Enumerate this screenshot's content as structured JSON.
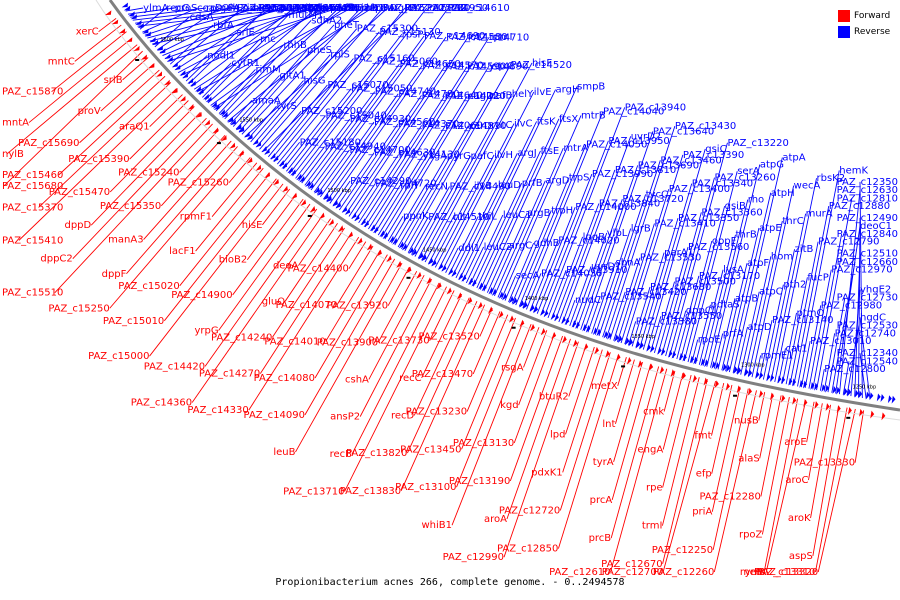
{
  "caption": "Propionibacterium acnes 266, complete genome. - 0..2494578",
  "legend": [
    {
      "label": "Forward",
      "color": "#ff0000"
    },
    {
      "label": "Reverse",
      "color": "#0000ff"
    }
  ],
  "colors": {
    "forward": "#ff0000",
    "reverse": "#0000ff",
    "backbone": "#808080"
  },
  "ticks": [
    "1600 kbp",
    "1550 kbp",
    "1500 kbp",
    "1450 kbp",
    "1400 kbp",
    "1350 kbp",
    "1300 kbp",
    "1250 kbp"
  ],
  "reverse_labels": [
    "ylmA",
    "proS",
    "rpsO",
    "PAZ_c15500",
    "pnp",
    "PAZ_c15490",
    "recG",
    "coaD",
    "PAZ_c15670",
    "PAZ_c15380",
    "rpsB",
    "frr",
    "cdsA",
    "gdh",
    "dxr",
    "PAZ_c15850",
    "nusA",
    "infB",
    "rbfA",
    "rimP",
    "truB",
    "ribF",
    "poxB",
    "nodl1",
    "srlE",
    "PAZ_c15570",
    "PAZ_c15620",
    "proW",
    "rpmB1",
    "cytR1",
    "rnc",
    "mutM1",
    "ftsY",
    "ffh",
    "trmD",
    "rimM",
    "rhhB",
    "sdhA2",
    "sdhB2",
    "lepB",
    "amaA",
    "gltA1",
    "pheS",
    "pheT",
    "infC",
    "argR2",
    "tyrS",
    "hisG",
    "rplS",
    "PAZ_c15300",
    "PAZ_c15220",
    "PAZ_c15230",
    "PAZ_c15200",
    "PAZ_c15070",
    "PAZ_c15160",
    "PAZ_c15130",
    "PAZ_c15030",
    "PAZ_c15180",
    "PAZ_c15040",
    "PAZ_c15050",
    "PAZ_c15060",
    "rpsP",
    "PAZ_c14950",
    "PAZ_c14940",
    "PAZ_c14930",
    "PAZ_c14740",
    "PAZ_c14650",
    "PAZ_c14690",
    "PAZ_c14610",
    "PAZ_c14700",
    "PAZ_c14560",
    "PAZ_c14780",
    "PAZ_c14570",
    "PAZ_c14580",
    "PAZ_c14290",
    "PAZ_c14630",
    "PAZ_c14370",
    "PAZ_c14640",
    "PAZ_c14590",
    "PAZ_c14710",
    "PAZ_c14720",
    "PAZ_c14130",
    "PAZ_c14060",
    "PAZ_c14120",
    "PAZ_c14890",
    "rpmI",
    "rplT",
    "ysgA",
    "PAZ_c14810",
    "nagD1",
    "yqxC",
    "ppnK",
    "recN",
    "pyrG",
    "xerD",
    "pafB",
    "PAZ_c14520",
    "PAZ_c14510",
    "PAZ_c14490",
    "pafC",
    "ratC",
    "helY",
    "hisF",
    "hit",
    "ilvB",
    "ilvH",
    "ilvC",
    "ilvE",
    "ddl1",
    "thiL",
    "leuD",
    "argJ",
    "ftsK",
    "argH",
    "leuC2",
    "leuC1",
    "prfB",
    "ftsE",
    "ftsX",
    "smpB",
    "argC",
    "argB",
    "argD",
    "mtrA",
    "mtrB",
    "secA",
    "gdhB",
    "trpH",
    "trpS",
    "PAZ_c14050",
    "PAZ_c14040",
    "PAZ_c14030",
    "PAZ_c14020",
    "PAZ_c14000",
    "PAZ_c13990",
    "PAZ_c13950",
    "PAZ_c13940",
    "PAZ_c13910",
    "lpqB",
    "PAZ_c13840",
    "PAZ_c13810",
    "uvrD2",
    "nudC",
    "uvrD1",
    "vlbL",
    "PAZ_c13720",
    "PAZ_c13690",
    "PAZ_c13640",
    "PAZ_c13540",
    "sbnA",
    "lgrB",
    "tycC",
    "PAZ_c13460",
    "PAZ_c13430",
    "PAZ_c13420",
    "PAZ_c13530",
    "PAZ_c13410",
    "PAZ_c13400",
    "PAZ_c13390",
    "PAZ_c13380",
    "PAZ_c13680",
    "parA1",
    "PAZ_c13350",
    "PAZ_c13340",
    "gsiC",
    "PAZ_c13550",
    "PAZ_c13500",
    "PAZ_c13560",
    "PAZ_c13360",
    "PAZ_c13260",
    "PAZ_c13220",
    "dppC1",
    "PAZ_c13170",
    "oppF",
    "gsiB",
    "serA",
    "rpoE",
    "pdtaS",
    "lysA",
    "thrB",
    "rho",
    "atpG",
    "prfA",
    "atpB",
    "atpF",
    "atpE",
    "atpH",
    "atpA",
    "atpD",
    "atpC",
    "hom",
    "thrC",
    "wecA",
    "rpmE1",
    "PAZ_c13140",
    "pth2",
    "zitB",
    "murA",
    "rbsK2",
    "cat1",
    "ptmO",
    "fucP",
    "PAZ_c12790",
    "PAZ_c12880",
    "hemK",
    "PAZ_c13010",
    "PAZ_c12980",
    "PAZ_c12970",
    "PAZ_c12840",
    "PAZ_c12810",
    "PAZ_c12800",
    "PAZ_c12740",
    "PAZ_c12730",
    "PAZ_c12660",
    "deoC1",
    "PAZ_c12630",
    "PAZ_c12540",
    "PAZ_c12530",
    "yhgE2",
    "PAZ_c12510",
    "PAZ_c12490",
    "PAZ_c12350",
    "PAZ_c12340",
    "hgdC"
  ],
  "forward_labels": [
    "xerC",
    "mntC",
    "PAZ_c15870",
    "mntA",
    "nylB",
    "PAZ_c15680",
    "srlB",
    "proV",
    "PAZ_c15690",
    "PAZ_c15460",
    "PAZ_c15370",
    "PAZ_c15410",
    "araQ1",
    "PAZ_c15390",
    "PAZ_c15470",
    "dppD",
    "dppC2",
    "PAZ_c15510",
    "PAZ_c15240",
    "PAZ_c15350",
    "manA3",
    "dppF",
    "PAZ_c15250",
    "PAZ_c15260",
    "rpmF1",
    "lacF1",
    "PAZ_c15020",
    "PAZ_c15010",
    "PAZ_c15000",
    "hisE",
    "bioB2",
    "PAZ_c14900",
    "yrpG",
    "PAZ_c14420",
    "PAZ_c14360",
    "deoA",
    "gluQ",
    "PAZ_c14240",
    "PAZ_c14270",
    "PAZ_c14330",
    "PAZ_c14400",
    "PAZ_c14070",
    "PAZ_c14010",
    "PAZ_c14080",
    "PAZ_c14090",
    "leuB",
    "PAZ_c13920",
    "PAZ_c13900",
    "cshA",
    "ansP2",
    "recB",
    "PAZ_c13710",
    "PAZ_c13730",
    "recC",
    "recD",
    "PAZ_c13820",
    "PAZ_c13830",
    "PAZ_c13520",
    "PAZ_c13470",
    "PAZ_c13230",
    "PAZ_c13450",
    "PAZ_c13100",
    "whiB1",
    "rsgA",
    "kgd",
    "PAZ_c13130",
    "PAZ_c13190",
    "aroA",
    "PAZ_c12990",
    "btuR2",
    "lpd",
    "pdxK1",
    "PAZ_c12720",
    "PAZ_c12850",
    "metX",
    "lnt",
    "tyrA",
    "prcA",
    "prcB",
    "PAZ_c12610",
    "cmk",
    "engA",
    "rpe",
    "trmI",
    "PAZ_c12670",
    "PAZ_c12700",
    "fmt",
    "efp",
    "priA",
    "PAZ_c12250",
    "PAZ_c12260",
    "nusB",
    "alaS",
    "PAZ_c12280",
    "rpoZ",
    "yrrL",
    "metK",
    "aroE",
    "aroC",
    "aroK",
    "aspS",
    "PAZ_c13310",
    "PAZ_c13320",
    "PAZ_c13330"
  ]
}
